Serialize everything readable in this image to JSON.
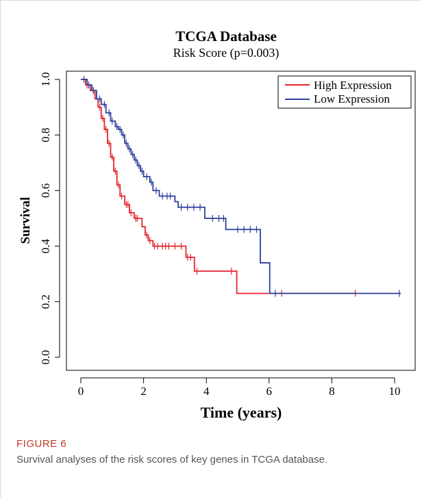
{
  "figure": {
    "label": "FIGURE 6",
    "caption": "Survival analyses of the risk scores of key genes in TCGA database."
  },
  "chart_data": {
    "type": "line",
    "title": "TCGA Database",
    "subtitle": "Risk Score (p=0.003)",
    "xlabel": "Time (years)",
    "ylabel": "Survival",
    "xlim": [
      0,
      10.3
    ],
    "ylim": [
      0,
      1.0
    ],
    "x_ticks": [
      "0",
      "2",
      "4",
      "6",
      "8",
      "10"
    ],
    "y_ticks": [
      "0.0",
      "0.2",
      "0.4",
      "0.6",
      "0.8",
      "1.0"
    ],
    "x_tick_values": [
      0,
      2,
      4,
      6,
      8,
      10
    ],
    "y_tick_values": [
      0,
      0.2,
      0.4,
      0.6,
      0.8,
      1.0
    ],
    "legend_position": "top-right",
    "series": [
      {
        "name": "High Expression",
        "color": "#e3242b",
        "steps": [
          [
            0,
            1.0
          ],
          [
            0.15,
            0.98
          ],
          [
            0.3,
            0.96
          ],
          [
            0.45,
            0.93
          ],
          [
            0.55,
            0.9
          ],
          [
            0.65,
            0.86
          ],
          [
            0.75,
            0.82
          ],
          [
            0.85,
            0.77
          ],
          [
            0.95,
            0.72
          ],
          [
            1.05,
            0.67
          ],
          [
            1.15,
            0.62
          ],
          [
            1.25,
            0.58
          ],
          [
            1.4,
            0.55
          ],
          [
            1.55,
            0.52
          ],
          [
            1.7,
            0.5
          ],
          [
            1.85,
            0.5
          ],
          [
            1.95,
            0.47
          ],
          [
            2.05,
            0.44
          ],
          [
            2.15,
            0.42
          ],
          [
            2.3,
            0.4
          ],
          [
            2.5,
            0.4
          ],
          [
            3.3,
            0.4
          ],
          [
            3.35,
            0.36
          ],
          [
            3.6,
            0.36
          ],
          [
            3.62,
            0.31
          ],
          [
            4.95,
            0.31
          ],
          [
            4.97,
            0.23
          ],
          [
            8.8,
            0.23
          ]
        ],
        "censor": [
          0.2,
          0.4,
          0.6,
          0.7,
          0.8,
          0.9,
          1.0,
          1.1,
          1.2,
          1.3,
          1.45,
          1.5,
          1.6,
          1.75,
          1.8,
          2.1,
          2.2,
          2.35,
          2.45,
          2.6,
          2.7,
          2.8,
          3.0,
          3.2,
          3.4,
          3.5,
          3.7,
          4.8,
          6.4,
          8.75
        ]
      },
      {
        "name": "Low Expression",
        "color": "#2b3f9b",
        "steps": [
          [
            0,
            1.0
          ],
          [
            0.2,
            0.98
          ],
          [
            0.35,
            0.96
          ],
          [
            0.5,
            0.93
          ],
          [
            0.65,
            0.91
          ],
          [
            0.8,
            0.88
          ],
          [
            0.95,
            0.85
          ],
          [
            1.1,
            0.83
          ],
          [
            1.2,
            0.82
          ],
          [
            1.3,
            0.8
          ],
          [
            1.4,
            0.77
          ],
          [
            1.5,
            0.75
          ],
          [
            1.6,
            0.73
          ],
          [
            1.7,
            0.71
          ],
          [
            1.8,
            0.69
          ],
          [
            1.9,
            0.67
          ],
          [
            2.0,
            0.65
          ],
          [
            2.2,
            0.63
          ],
          [
            2.3,
            0.6
          ],
          [
            2.5,
            0.58
          ],
          [
            2.9,
            0.58
          ],
          [
            3.0,
            0.56
          ],
          [
            3.1,
            0.54
          ],
          [
            3.9,
            0.54
          ],
          [
            3.95,
            0.5
          ],
          [
            4.6,
            0.5
          ],
          [
            4.62,
            0.46
          ],
          [
            5.7,
            0.46
          ],
          [
            5.72,
            0.34
          ],
          [
            6.0,
            0.34
          ],
          [
            6.02,
            0.23
          ],
          [
            10.2,
            0.23
          ]
        ],
        "censor": [
          0.1,
          0.25,
          0.4,
          0.6,
          0.75,
          0.9,
          1.0,
          1.15,
          1.25,
          1.35,
          1.45,
          1.55,
          1.65,
          1.75,
          1.85,
          1.95,
          2.1,
          2.25,
          2.4,
          2.6,
          2.75,
          2.85,
          3.2,
          3.4,
          3.6,
          3.8,
          4.2,
          4.4,
          4.55,
          5.0,
          5.2,
          5.4,
          5.6,
          6.2,
          10.15
        ]
      }
    ]
  }
}
